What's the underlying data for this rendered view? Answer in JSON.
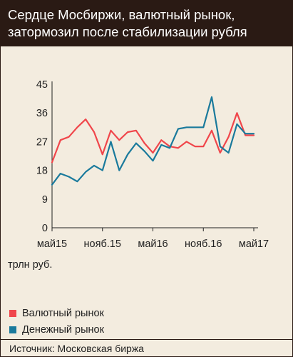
{
  "header": {
    "title_line1": "Сердце Мосбиржи, валютный рынок,",
    "title_line2": "затормозил после стабилизации рубля"
  },
  "unit_label": "трлн  руб.",
  "source": "Источник: Московская биржа",
  "chart_data": {
    "type": "line",
    "x": [
      "2015-05",
      "2015-06",
      "2015-07",
      "2015-08",
      "2015-09",
      "2015-10",
      "2015-11",
      "2015-12",
      "2016-01",
      "2016-02",
      "2016-03",
      "2016-04",
      "2016-05",
      "2016-06",
      "2016-07",
      "2016-08",
      "2016-09",
      "2016-10",
      "2016-11",
      "2016-12",
      "2017-01",
      "2017-02",
      "2017-03",
      "2017-04",
      "2017-05"
    ],
    "xticks": [
      {
        "x": "2015-05",
        "label": "май15"
      },
      {
        "x": "2015-11",
        "label": "нояб.15"
      },
      {
        "x": "2016-05",
        "label": "май16"
      },
      {
        "x": "2016-11",
        "label": "нояб.16"
      },
      {
        "x": "2017-05",
        "label": "май17"
      }
    ],
    "yticks": [
      0,
      9,
      18,
      27,
      36,
      45
    ],
    "ylim": [
      0,
      45
    ],
    "grid": false,
    "legend_position": "bottom-left",
    "series": [
      {
        "name": "Валютный рынок",
        "color": "#f0464b",
        "values": [
          20.5,
          27.5,
          28.5,
          31.5,
          34.0,
          30.0,
          23.0,
          30.5,
          27.5,
          30.0,
          30.5,
          26.5,
          23.5,
          27.5,
          25.5,
          25.0,
          27.0,
          25.5,
          25.5,
          30.5,
          23.5,
          28.5,
          36.0,
          29.0,
          29.0
        ]
      },
      {
        "name": "Денежный рынок",
        "color": "#1a7a9c",
        "values": [
          13.5,
          17.0,
          16.0,
          14.5,
          17.5,
          19.5,
          18.0,
          27.0,
          18.0,
          23.0,
          26.5,
          24.0,
          21.0,
          26.0,
          25.0,
          31.0,
          31.5,
          31.5,
          31.5,
          41.0,
          25.5,
          23.5,
          32.5,
          29.5,
          29.5
        ]
      }
    ]
  }
}
